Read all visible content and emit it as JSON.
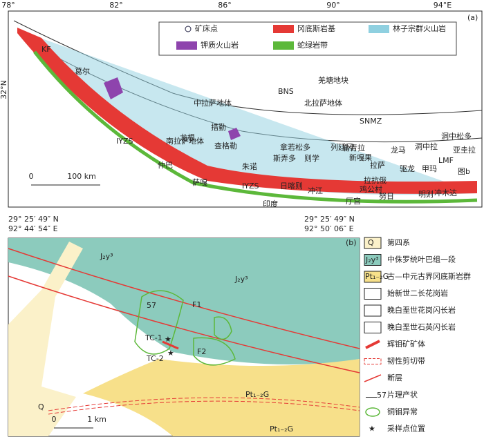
{
  "panel_a": {
    "label": "(a)",
    "lon_ticks": [
      "78°",
      "82°",
      "86°",
      "90°",
      "94°E"
    ],
    "lat_tick": "32°N",
    "legend": [
      "矿床点",
      "冈底斯岩基",
      "林子宗群火山岩",
      "钾质火山岩",
      "蛇绿岩带"
    ],
    "places": [
      "KF",
      "葛尔",
      "BNS",
      "羌塘地块",
      "中拉萨地体",
      "北拉萨地体",
      "SNMZ",
      "IYZS",
      "南拉萨地体",
      "措勤",
      "龙根",
      "查格勒",
      "朱诺",
      "斯弄多",
      "拿若松多",
      "则学",
      "列廷冈",
      "勒青拉",
      "新嘎果",
      "龙马",
      "洞中拉",
      "洞中松多",
      "亚圭拉",
      "LMF",
      "驱龙",
      "甲玛",
      "图b",
      "拉萨",
      "拉抗俄",
      "冲江",
      "厅宫",
      "鸡公村",
      "努日",
      "明则",
      "冲木达",
      "日喀则",
      "仲巴",
      "萨嘎",
      "印度",
      "IYZS"
    ],
    "scale": [
      "0",
      "100 km"
    ]
  },
  "panel_b": {
    "label": "(b)",
    "coords": [
      "29° 25′ 49″ N",
      "92° 44′ 54″ E",
      "29° 25′ 49″ N",
      "92° 50′ 06″ E"
    ],
    "map_labels": [
      "J₂y³",
      "J₂y³",
      "Q",
      "Pt₁₋₂G",
      "Pt₁₋₂G",
      "F1",
      "F2",
      "TC-1",
      "TC-2",
      "57"
    ],
    "legend_symbols": [
      "Q",
      "J₂y³",
      "Pt₁₋₂G",
      "57"
    ],
    "legend": [
      "第四系",
      "中侏罗统叶巴组一段",
      "古—中元古界冈底斯岩群",
      "始新世二长花岗岩",
      "晚白垩世花岗闪长岩",
      "晚白垩世石英闪长岩",
      "辉钼矿矿体",
      "韧性剪切带",
      "断层",
      "片理产状",
      "铜钼异常",
      "采样点位置"
    ],
    "scale": [
      "0",
      "1 km"
    ]
  }
}
